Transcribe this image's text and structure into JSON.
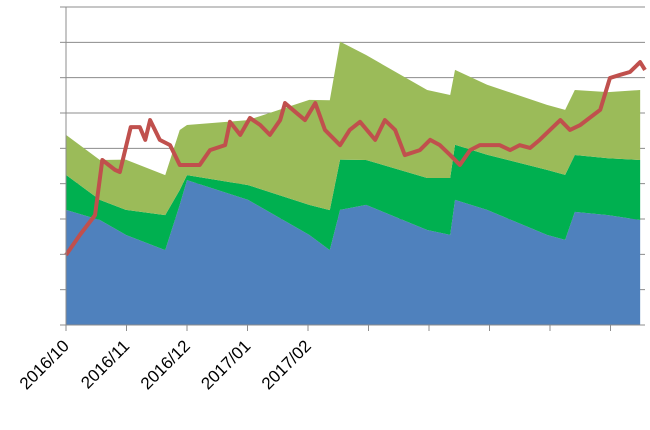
{
  "chart_data": {
    "type": "area",
    "stacked": true,
    "xlim": [
      0,
      9.57
    ],
    "ylim": [
      0,
      9
    ],
    "xticks": [
      {
        "value": 0,
        "label": "2016/10"
      },
      {
        "value": 1,
        "label": "2016/11"
      },
      {
        "value": 2,
        "label": "2016/12"
      },
      {
        "value": 3,
        "label": "2017/01"
      },
      {
        "value": 4,
        "label": "2017/02"
      },
      {
        "value": 5,
        "label": null
      },
      {
        "value": 6,
        "label": null
      },
      {
        "value": 7,
        "label": null
      },
      {
        "value": 8,
        "label": null
      },
      {
        "value": 9,
        "label": null
      }
    ],
    "yticks": [
      0,
      1,
      2,
      3,
      4,
      5,
      6,
      7,
      8,
      9
    ],
    "grid": true,
    "x": [
      0,
      0.56,
      0.99,
      1.64,
      1.88,
      2.0,
      3.01,
      4.02,
      4.36,
      4.53,
      4.96,
      5.97,
      6.35,
      6.43,
      6.96,
      7.95,
      8.25,
      8.41,
      8.96,
      9.49
    ],
    "series": [
      {
        "color": "#4f81bd",
        "values": [
          3.26,
          2.97,
          2.55,
          2.12,
          3.4,
          4.1,
          3.54,
          2.55,
          2.12,
          3.26,
          3.4,
          2.69,
          2.55,
          3.54,
          3.26,
          2.55,
          2.41,
          3.2,
          3.11,
          2.97
        ]
      },
      {
        "color": "#00b050",
        "values": [
          0.99,
          0.57,
          0.71,
          0.99,
          0.42,
          0.14,
          0.42,
          0.85,
          1.13,
          1.42,
          1.27,
          1.47,
          1.61,
          1.56,
          1.56,
          1.84,
          1.84,
          1.61,
          1.61,
          1.7
        ]
      },
      {
        "color": "#9bbb59",
        "values": [
          1.13,
          1.13,
          1.42,
          1.13,
          1.7,
          1.42,
          1.84,
          2.97,
          3.11,
          3.34,
          2.97,
          2.49,
          2.35,
          2.12,
          1.98,
          1.84,
          1.84,
          1.84,
          1.87,
          1.98
        ]
      }
    ],
    "line": {
      "color": "#c0504d",
      "x": [
        0,
        0.23,
        0.48,
        0.6,
        0.81,
        0.89,
        1.07,
        1.22,
        1.31,
        1.39,
        1.55,
        1.72,
        1.88,
        2.21,
        2.38,
        2.63,
        2.71,
        2.88,
        3.04,
        3.21,
        3.37,
        3.54,
        3.62,
        3.79,
        3.95,
        4.12,
        4.28,
        4.53,
        4.69,
        4.86,
        5.11,
        5.27,
        5.44,
        5.6,
        5.85,
        6.02,
        6.18,
        6.35,
        6.51,
        6.68,
        6.84,
        7.17,
        7.34,
        7.5,
        7.67,
        7.83,
        8.0,
        8.17,
        8.33,
        8.5,
        8.83,
        8.99,
        9.16,
        9.32,
        9.49,
        9.57
      ],
      "values": [
        1.98,
        2.55,
        3.11,
        4.67,
        4.39,
        4.33,
        5.6,
        5.6,
        5.24,
        5.8,
        5.24,
        5.09,
        4.53,
        4.53,
        4.95,
        5.09,
        5.75,
        5.38,
        5.86,
        5.66,
        5.38,
        5.8,
        6.28,
        6.03,
        5.8,
        6.28,
        5.52,
        5.09,
        5.52,
        5.75,
        5.24,
        5.8,
        5.52,
        4.81,
        4.95,
        5.24,
        5.09,
        4.81,
        4.53,
        4.95,
        5.09,
        5.09,
        4.95,
        5.09,
        5.01,
        5.24,
        5.52,
        5.8,
        5.52,
        5.66,
        6.09,
        6.99,
        7.08,
        7.16,
        7.44,
        7.22
      ]
    }
  }
}
